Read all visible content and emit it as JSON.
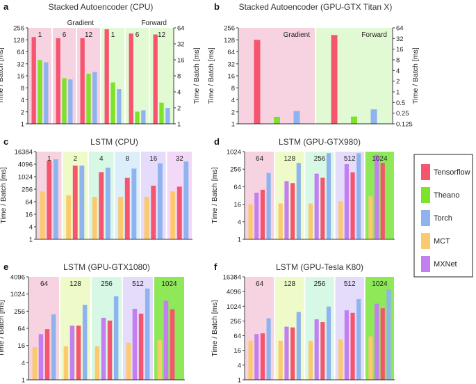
{
  "legend": [
    {
      "name": "Tensorflow",
      "color": "#f5556f"
    },
    {
      "name": "Theano",
      "color": "#7fe22a"
    },
    {
      "name": "Torch",
      "color": "#8fb3ef"
    },
    {
      "name": "MCT",
      "color": "#fbc96e"
    },
    {
      "name": "MXNet",
      "color": "#c37ff2"
    }
  ],
  "chart_data": [
    {
      "id": "a",
      "letter": "a",
      "type": "bar",
      "title": "Stacked Autoencoder (CPU)",
      "ylabel": "Time / Batch [ms]",
      "yscale": "log2",
      "ylim": [
        1,
        256
      ],
      "ticks": [
        1,
        2,
        4,
        8,
        16,
        32,
        64,
        128,
        256
      ],
      "y2label": "Time / Batch [ms]",
      "y2lim": [
        1,
        64
      ],
      "y2ticks": [
        1,
        2,
        4,
        8,
        16,
        32,
        64
      ],
      "series": [
        "Tensorflow",
        "Theano",
        "Torch"
      ],
      "groups": [
        {
          "label": "1",
          "bg": "#f7d3e1",
          "axis": "left",
          "section": "Gradient",
          "values": [
            150,
            40,
            35
          ]
        },
        {
          "label": "6",
          "bg": "#f7d3e1",
          "axis": "left",
          "values": [
            140,
            14,
            13
          ]
        },
        {
          "label": "12",
          "bg": "#f7d3e1",
          "axis": "left",
          "values": [
            140,
            18,
            20
          ]
        },
        {
          "label": "1",
          "bg": "#e2fad4",
          "axis": "right",
          "section": "Forward",
          "values": [
            60,
            6,
            4.5
          ]
        },
        {
          "label": "6",
          "bg": "#e2fad4",
          "axis": "right",
          "values": [
            50,
            1.7,
            1.8
          ]
        },
        {
          "label": "12",
          "bg": "#e2fad4",
          "axis": "right",
          "values": [
            48,
            2.5,
            2
          ]
        }
      ]
    },
    {
      "id": "b",
      "letter": "b",
      "type": "bar",
      "title": "Stacked Autoencoder (GPU-GTX Titan X)",
      "ylabel": "Time / Batch [ms]",
      "yscale": "log2",
      "ylim": [
        1,
        256
      ],
      "ticks": [
        1,
        2,
        4,
        8,
        16,
        32,
        64,
        128,
        256
      ],
      "y2label": "Time / Batch [ms]",
      "y2lim": [
        0.125,
        64
      ],
      "y2ticks": [
        0.125,
        0.25,
        0.5,
        1,
        2,
        4,
        8,
        16,
        32,
        64
      ],
      "series": [
        "Tensorflow",
        "Theano",
        "Torch"
      ],
      "groups": [
        {
          "label": "Gradient",
          "bg": "#f7d3e1",
          "axis": "left",
          "values": [
            128,
            1.5,
            2.1
          ]
        },
        {
          "label": "Forward",
          "bg": "#e2fad4",
          "axis": "right",
          "values": [
            40,
            0.2,
            0.32
          ]
        }
      ]
    },
    {
      "id": "c",
      "letter": "c",
      "type": "bar",
      "title": "LSTM (CPU)",
      "ylabel": "Time / Batch [ms]",
      "yscale": "log2",
      "ylim": [
        1,
        16384
      ],
      "ticks": [
        1,
        4,
        16,
        64,
        256,
        1024,
        4096,
        16384
      ],
      "series": [
        "MCT",
        "Tensorflow",
        "Torch"
      ],
      "groups": [
        {
          "label": "1",
          "bg": "#f7d3e1",
          "values": [
            200,
            6000,
            7000
          ]
        },
        {
          "label": "2",
          "bg": "#eefac8",
          "values": [
            130,
            3500,
            3500
          ]
        },
        {
          "label": "4",
          "bg": "#d8f8e6",
          "values": [
            110,
            1700,
            2800
          ]
        },
        {
          "label": "8",
          "bg": "#dbeefa",
          "values": [
            110,
            900,
            2500
          ]
        },
        {
          "label": "16",
          "bg": "#e4dcfa",
          "values": [
            110,
            380,
            4500
          ]
        },
        {
          "label": "32",
          "bg": "#f4d8f7",
          "values": [
            200,
            340,
            5500
          ]
        }
      ]
    },
    {
      "id": "d",
      "letter": "d",
      "type": "bar",
      "title": "LSTM (GPU-GTX980)",
      "ylabel": "Time / Batch [ms]",
      "yscale": "log2",
      "ylim": [
        1,
        1024
      ],
      "ticks": [
        1,
        4,
        16,
        64,
        256,
        1024
      ],
      "series": [
        "MCT",
        "MXNet",
        "Tensorflow",
        "Torch"
      ],
      "groups": [
        {
          "label": "64",
          "bg": "#f7d3e1",
          "values": [
            16,
            40,
            50,
            190
          ]
        },
        {
          "label": "128",
          "bg": "#eefac8",
          "values": [
            17,
            100,
            85,
            420
          ]
        },
        {
          "label": "256",
          "bg": "#d8f8e6",
          "values": [
            17,
            180,
            130,
            900
          ]
        },
        {
          "label": "512",
          "bg": "#e4dcfa",
          "values": [
            20,
            380,
            200,
            900
          ]
        },
        {
          "label": "1024",
          "bg": "#8ee858",
          "values": [
            30,
            800,
            420,
            0
          ]
        }
      ]
    },
    {
      "id": "e",
      "letter": "e",
      "type": "bar",
      "title": "LSTM (GPU-GTX1080)",
      "ylabel": "Time / Batch [ms]",
      "yscale": "log2",
      "ylim": [
        1,
        4096
      ],
      "ticks": [
        1,
        4,
        16,
        64,
        256,
        1024,
        4096
      ],
      "series": [
        "MCT",
        "MXNet",
        "Tensorflow",
        "Torch"
      ],
      "groups": [
        {
          "label": "64",
          "bg": "#f7d3e1",
          "values": [
            14,
            40,
            60,
            200
          ]
        },
        {
          "label": "128",
          "bg": "#eefac8",
          "values": [
            15,
            80,
            80,
            430
          ]
        },
        {
          "label": "256",
          "bg": "#d8f8e6",
          "values": [
            15,
            150,
            120,
            850
          ]
        },
        {
          "label": "512",
          "bg": "#e4dcfa",
          "values": [
            20,
            310,
            210,
            1600
          ]
        },
        {
          "label": "1024",
          "bg": "#8ee858",
          "values": [
            25,
            600,
            300,
            0
          ]
        }
      ]
    },
    {
      "id": "f",
      "letter": "f",
      "type": "bar",
      "title": "LSTM (GPU-Tesla K80)",
      "ylabel": "Time / Batch [ms]",
      "yscale": "log2",
      "ylim": [
        1,
        16384
      ],
      "ticks": [
        1,
        4,
        16,
        64,
        256,
        1024,
        4096,
        16384
      ],
      "series": [
        "MCT",
        "MXNet",
        "Tensorflow",
        "Torch"
      ],
      "groups": [
        {
          "label": "64",
          "bg": "#f7d3e1",
          "values": [
            40,
            75,
            80,
            330
          ]
        },
        {
          "label": "128",
          "bg": "#eefac8",
          "values": [
            40,
            150,
            140,
            600
          ]
        },
        {
          "label": "256",
          "bg": "#d8f8e6",
          "values": [
            40,
            300,
            230,
            1000
          ]
        },
        {
          "label": "512",
          "bg": "#e4dcfa",
          "values": [
            45,
            700,
            550,
            2000
          ]
        },
        {
          "label": "1024",
          "bg": "#8ee858",
          "values": [
            60,
            1300,
            850,
            5000
          ]
        }
      ]
    }
  ]
}
